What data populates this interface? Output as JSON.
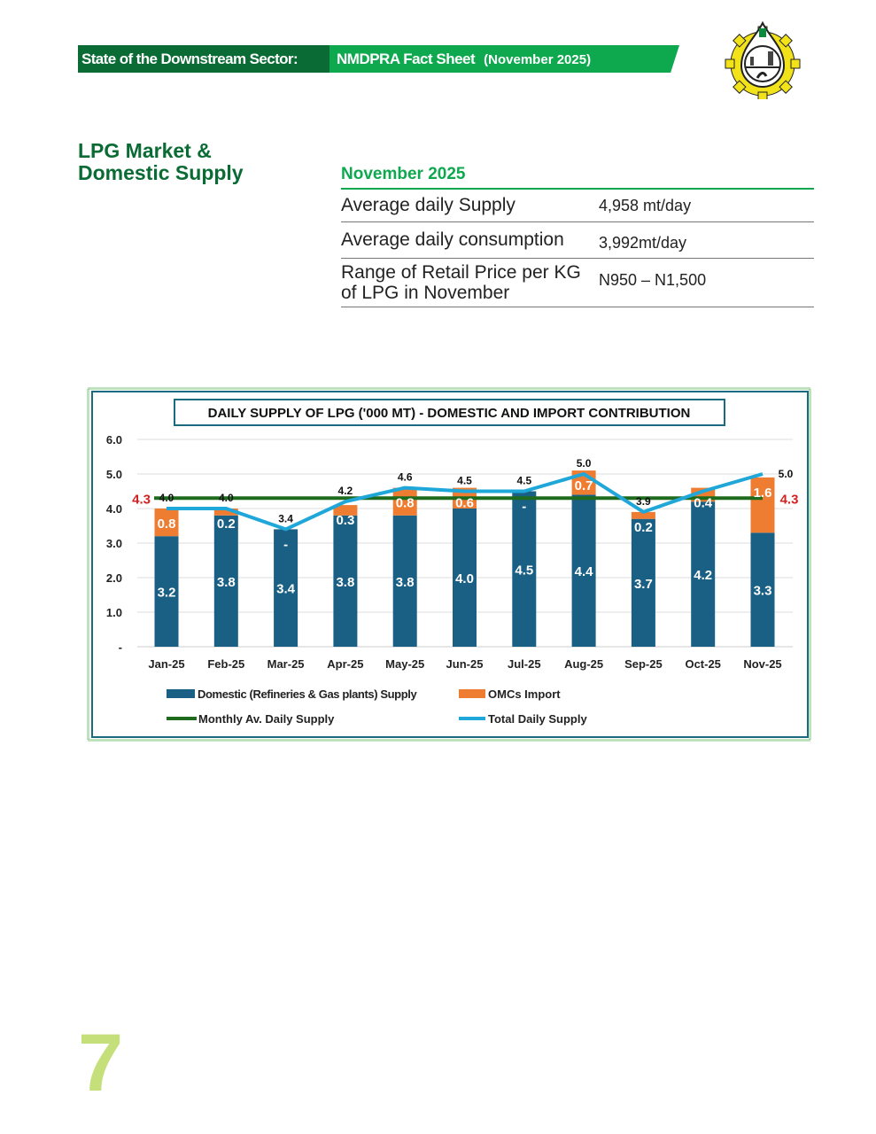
{
  "header": {
    "section": "State of the Downstream Sector:",
    "title": "NMDPRA Fact Sheet",
    "period": "(November 2025)"
  },
  "logo": {
    "name": "nmdpra-logo-icon"
  },
  "section_title": "LPG Market & Domestic Supply",
  "table": {
    "title": "November 2025",
    "rows": [
      {
        "label": "Average daily Supply",
        "value": "4,958 mt/day"
      },
      {
        "label": "Average daily consumption",
        "value": "3,992mt/day"
      },
      {
        "label": "Range of Retail Price per KG of LPG in November",
        "value": "N950 – N1,500"
      }
    ]
  },
  "page_number": "7",
  "chart_data": {
    "type": "bar",
    "stacked": true,
    "title": "DAILY SUPPLY  OF LPG ('000 MT) - DOMESTIC AND IMPORT CONTRIBUTION",
    "categories": [
      "Jan-25",
      "Feb-25",
      "Mar-25",
      "Apr-25",
      "May-25",
      "Jun-25",
      "Jul-25",
      "Aug-25",
      "Sep-25",
      "Oct-25",
      "Nov-25"
    ],
    "ylim": [
      0,
      6
    ],
    "yticks": [
      "-",
      "1.0",
      "2.0",
      "3.0",
      "4.0",
      "5.0",
      "6.0"
    ],
    "grid": true,
    "legend_position": "bottom",
    "series": [
      {
        "name": "Domestic (Refineries & Gas plants) Supply",
        "kind": "bar",
        "color": "#1a5f84",
        "values": [
          3.2,
          3.8,
          3.4,
          3.8,
          3.8,
          4.0,
          4.5,
          4.4,
          3.7,
          4.2,
          3.3
        ],
        "labels": [
          "3.2",
          "3.8",
          "3.4",
          "3.8",
          "3.8",
          "4.0",
          "4.5",
          "4.4",
          "3.7",
          "4.2",
          "3.3"
        ]
      },
      {
        "name": "OMCs Import",
        "kind": "bar",
        "color": "#ee7d31",
        "values": [
          0.8,
          0.2,
          0,
          0.3,
          0.8,
          0.6,
          0,
          0.7,
          0.2,
          0.4,
          1.6
        ],
        "labels": [
          "0.8",
          "0.2",
          "-",
          "0.3",
          "0.8",
          "0.6",
          "-",
          "0.7",
          "0.2",
          "0.4",
          "1.6"
        ]
      },
      {
        "name": "Monthly Av. Daily Supply",
        "kind": "line",
        "color": "#1e6b1e",
        "values": [
          4.3,
          4.3,
          4.3,
          4.3,
          4.3,
          4.3,
          4.3,
          4.3,
          4.3,
          4.3,
          4.3
        ],
        "end_labels": [
          "4.3",
          "4.3"
        ],
        "label_color": "#d42020"
      },
      {
        "name": "Total  Daily Supply",
        "kind": "line",
        "color": "#1ea7d8",
        "values": [
          4.0,
          4.0,
          3.4,
          4.2,
          4.6,
          4.5,
          4.5,
          5.0,
          3.9,
          4.5,
          5.0
        ],
        "labels": [
          "4.0",
          "4.0",
          "3.4",
          "4.2",
          "4.6",
          "4.5",
          "4.5",
          "5.0",
          "3.9",
          null,
          "5.0"
        ]
      }
    ]
  }
}
